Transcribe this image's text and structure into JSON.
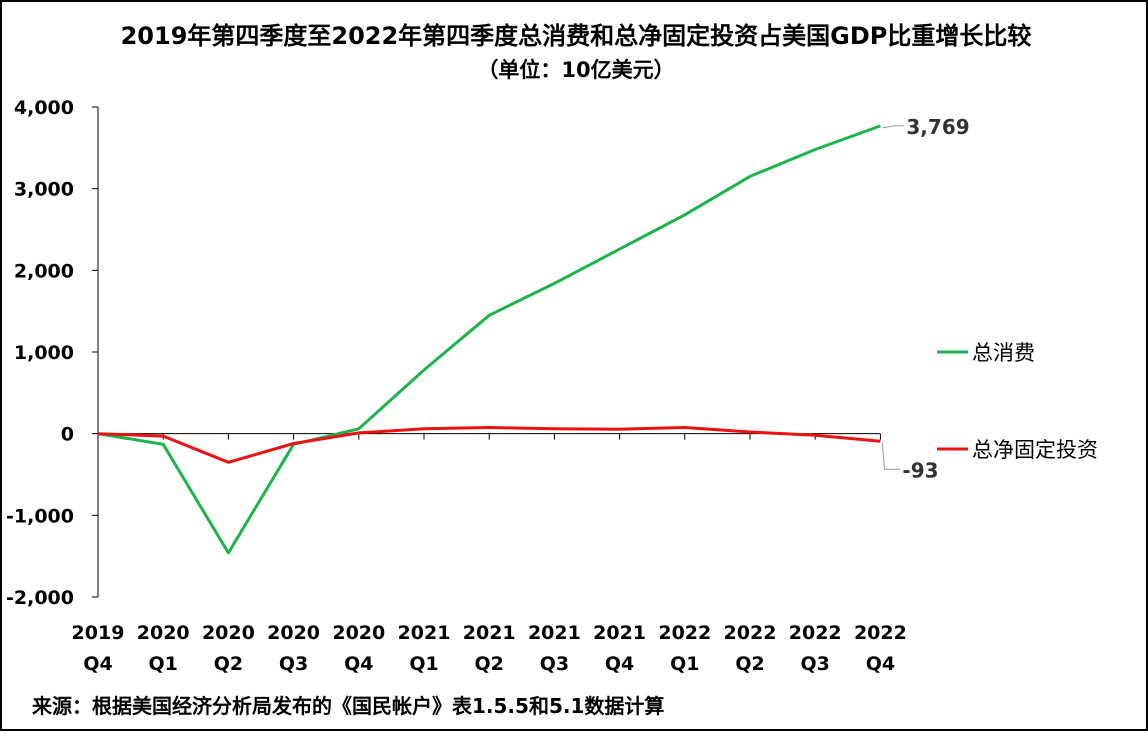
{
  "chart_data": {
    "type": "line",
    "title": "2019年第四季度至2022年第四季度总消费和总净固定投资占美国GDP比重增长比较",
    "subtitle": "（单位：10亿美元）",
    "source": "来源：根据美国经济分析局发布的《国民帐户》表1.5.5和5.1数据计算",
    "categories": [
      [
        "2019",
        "Q4"
      ],
      [
        "2020",
        "Q1"
      ],
      [
        "2020",
        "Q2"
      ],
      [
        "2020",
        "Q3"
      ],
      [
        "2020",
        "Q4"
      ],
      [
        "2021",
        "Q1"
      ],
      [
        "2021",
        "Q2"
      ],
      [
        "2021",
        "Q3"
      ],
      [
        "2021",
        "Q4"
      ],
      [
        "2022",
        "Q1"
      ],
      [
        "2022",
        "Q2"
      ],
      [
        "2022",
        "Q3"
      ],
      [
        "2022",
        "Q4"
      ]
    ],
    "yticks": [
      "4,000",
      "3,000",
      "2,000",
      "1,000",
      "0",
      "-1,000",
      "-2,000"
    ],
    "ylim": [
      -2000,
      4000
    ],
    "series": [
      {
        "name": "总消费",
        "color": "#1db34b",
        "values": [
          0,
          -130,
          -1460,
          -130,
          60,
          780,
          1450,
          1840,
          2260,
          2680,
          3150,
          3480,
          3769
        ],
        "end_label": "3,769"
      },
      {
        "name": "总净固定投资",
        "color": "#ee1111",
        "values": [
          0,
          -30,
          -350,
          -120,
          10,
          60,
          75,
          60,
          55,
          75,
          20,
          -20,
          -93
        ],
        "end_label": "-93"
      }
    ]
  }
}
